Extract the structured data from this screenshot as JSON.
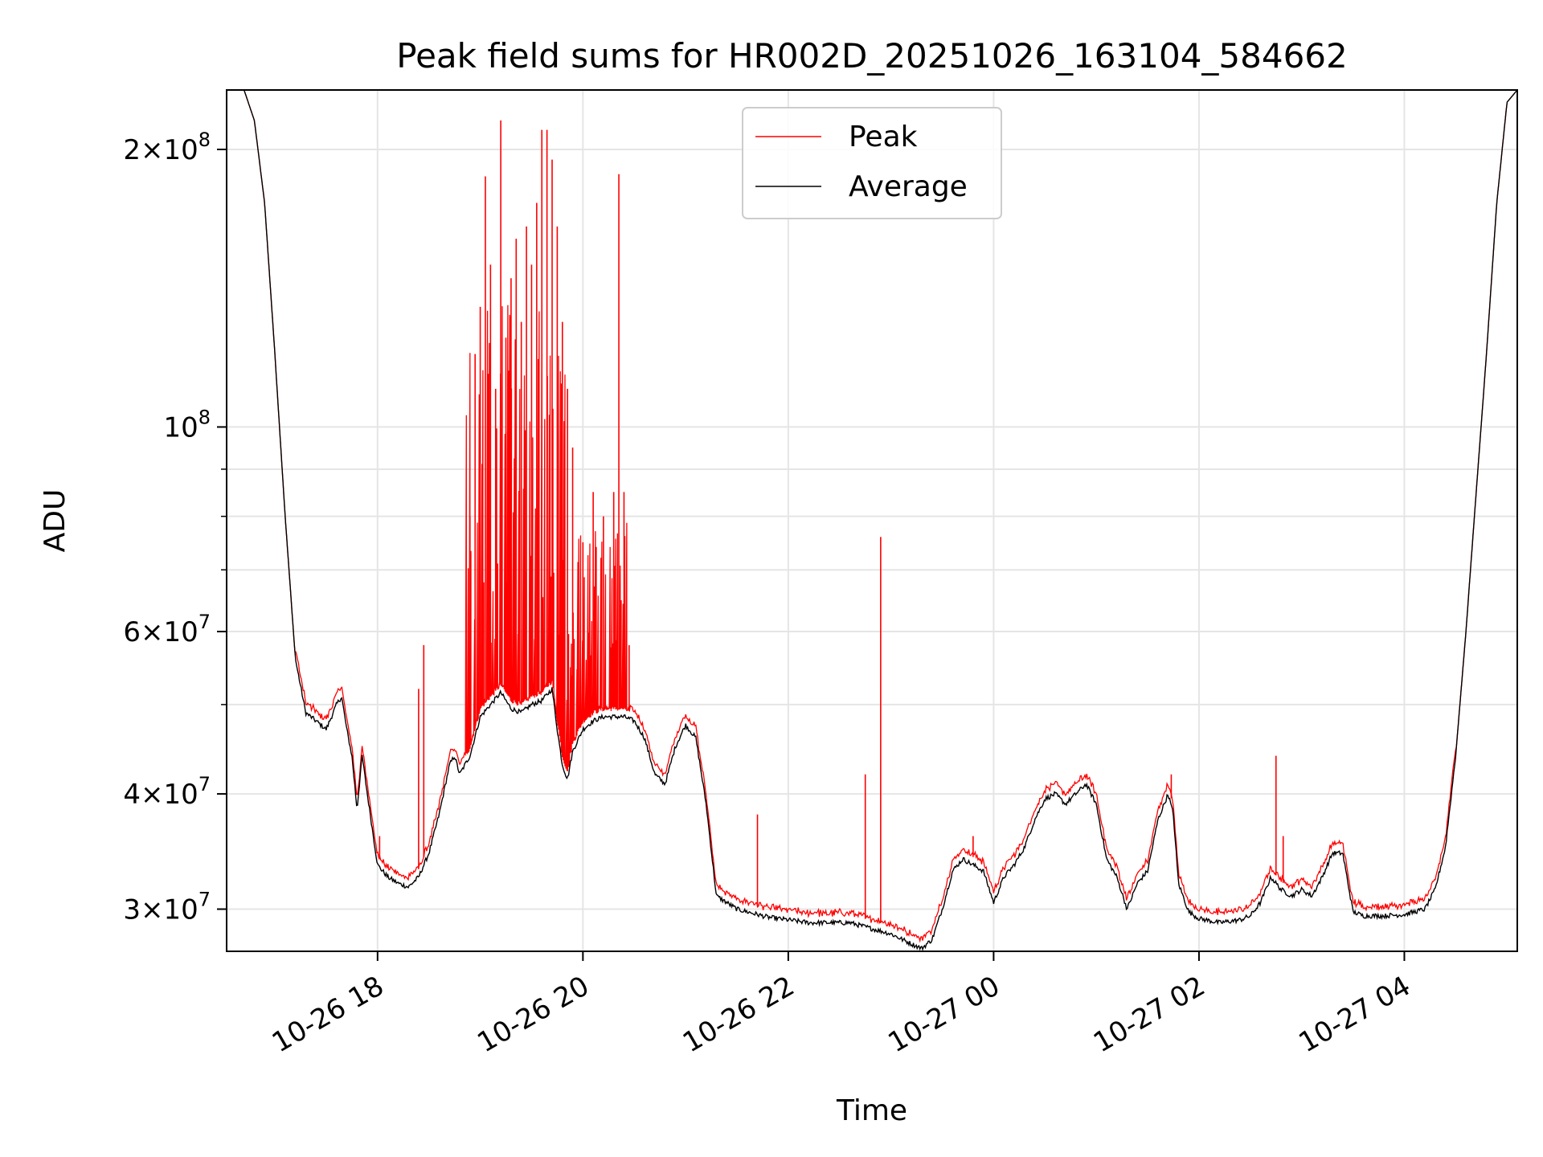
{
  "chart_data": {
    "type": "line",
    "title": "Peak field sums for HR002D_20251026_163104_584662",
    "xlabel": "Time",
    "ylabel": "ADU",
    "yscale": "log",
    "ylim": [
      27000000,
      232000000
    ],
    "xlim_hours": [
      16.53,
      29.1
    ],
    "grid": true,
    "legend_position": "upper-center",
    "x_ticks": [
      {
        "hour": 18,
        "label": "10-26 18"
      },
      {
        "hour": 20,
        "label": "10-26 20"
      },
      {
        "hour": 22,
        "label": "10-26 22"
      },
      {
        "hour": 24,
        "label": "10-27 00"
      },
      {
        "hour": 26,
        "label": "10-27 02"
      },
      {
        "hour": 28,
        "label": "10-27 04"
      }
    ],
    "y_ticks": [
      {
        "value": 30000000,
        "mant": "3",
        "exp": "7"
      },
      {
        "value": 40000000,
        "mant": "4",
        "exp": "7"
      },
      {
        "value": 60000000,
        "mant": "6",
        "exp": "7"
      },
      {
        "value": 100000000,
        "mant": "",
        "exp": "8"
      },
      {
        "value": 200000000,
        "mant": "2",
        "exp": "8"
      }
    ],
    "y_minor_ticks": [
      50000000,
      70000000,
      80000000,
      90000000
    ],
    "colors": {
      "peak": "#ff0000",
      "average": "#000000",
      "grid": "#e5e5e5"
    },
    "series": [
      {
        "name": "Peak",
        "color": "#ff0000",
        "baseline_offset": 1.02,
        "spikes": [
          [
            18.02,
            36000000
          ],
          [
            18.4,
            52000000
          ],
          [
            18.45,
            58000000
          ],
          [
            18.9,
            80000000
          ],
          [
            18.95,
            120000000
          ],
          [
            19.0,
            135000000
          ],
          [
            19.05,
            187000000
          ],
          [
            19.1,
            150000000
          ],
          [
            19.15,
            110000000
          ],
          [
            19.2,
            215000000
          ],
          [
            19.25,
            125000000
          ],
          [
            19.3,
            145000000
          ],
          [
            19.35,
            160000000
          ],
          [
            19.4,
            130000000
          ],
          [
            19.45,
            165000000
          ],
          [
            19.5,
            150000000
          ],
          [
            19.55,
            175000000
          ],
          [
            19.6,
            210000000
          ],
          [
            19.65,
            210000000
          ],
          [
            19.7,
            195000000
          ],
          [
            19.75,
            165000000
          ],
          [
            19.8,
            130000000
          ],
          [
            19.85,
            110000000
          ],
          [
            19.9,
            95000000
          ],
          [
            20.0,
            75000000
          ],
          [
            20.1,
            85000000
          ],
          [
            20.2,
            80000000
          ],
          [
            20.3,
            85000000
          ],
          [
            20.35,
            188000000
          ],
          [
            20.4,
            85000000
          ],
          [
            20.45,
            58000000
          ],
          [
            21.7,
            38000000
          ],
          [
            22.75,
            42000000
          ],
          [
            22.9,
            76000000
          ],
          [
            23.8,
            36000000
          ],
          [
            25.73,
            42000000
          ],
          [
            26.75,
            44000000
          ],
          [
            26.82,
            36000000
          ]
        ]
      },
      {
        "name": "Average",
        "color": "#000000",
        "points": [
          [
            16.53,
            232000000
          ],
          [
            16.7,
            232000000
          ],
          [
            16.8,
            215000000
          ],
          [
            16.9,
            175000000
          ],
          [
            17.0,
            120000000
          ],
          [
            17.1,
            80000000
          ],
          [
            17.2,
            56000000
          ],
          [
            17.3,
            49000000
          ],
          [
            17.4,
            48000000
          ],
          [
            17.5,
            47000000
          ],
          [
            17.6,
            50000000
          ],
          [
            17.65,
            51000000
          ],
          [
            17.7,
            47000000
          ],
          [
            17.75,
            44000000
          ],
          [
            17.8,
            38500000
          ],
          [
            17.85,
            44000000
          ],
          [
            17.9,
            40000000
          ],
          [
            18.0,
            33500000
          ],
          [
            18.1,
            32500000
          ],
          [
            18.2,
            32000000
          ],
          [
            18.3,
            31700000
          ],
          [
            18.4,
            32500000
          ],
          [
            18.5,
            34500000
          ],
          [
            18.6,
            38000000
          ],
          [
            18.7,
            43000000
          ],
          [
            18.75,
            44000000
          ],
          [
            18.8,
            42000000
          ],
          [
            18.85,
            43000000
          ],
          [
            18.9,
            44000000
          ],
          [
            19.0,
            48500000
          ],
          [
            19.1,
            50000000
          ],
          [
            19.2,
            51500000
          ],
          [
            19.3,
            49500000
          ],
          [
            19.4,
            49000000
          ],
          [
            19.5,
            50000000
          ],
          [
            19.6,
            50500000
          ],
          [
            19.7,
            52000000
          ],
          [
            19.75,
            47000000
          ],
          [
            19.8,
            43000000
          ],
          [
            19.85,
            41500000
          ],
          [
            19.9,
            44500000
          ],
          [
            20.0,
            47000000
          ],
          [
            20.1,
            48000000
          ],
          [
            20.2,
            48500000
          ],
          [
            20.3,
            48500000
          ],
          [
            20.4,
            48500000
          ],
          [
            20.5,
            48000000
          ],
          [
            20.6,
            46000000
          ],
          [
            20.7,
            42000000
          ],
          [
            20.8,
            41000000
          ],
          [
            20.9,
            45000000
          ],
          [
            21.0,
            47500000
          ],
          [
            21.1,
            46000000
          ],
          [
            21.2,
            39000000
          ],
          [
            21.3,
            31000000
          ],
          [
            21.4,
            30500000
          ],
          [
            21.5,
            30000000
          ],
          [
            21.6,
            29800000
          ],
          [
            21.8,
            29400000
          ],
          [
            22.0,
            29200000
          ],
          [
            22.2,
            29000000
          ],
          [
            22.4,
            29000000
          ],
          [
            22.6,
            29000000
          ],
          [
            22.8,
            28600000
          ],
          [
            23.0,
            28200000
          ],
          [
            23.2,
            27500000
          ],
          [
            23.3,
            27200000
          ],
          [
            23.4,
            27800000
          ],
          [
            23.5,
            30000000
          ],
          [
            23.6,
            33000000
          ],
          [
            23.7,
            34000000
          ],
          [
            23.8,
            33500000
          ],
          [
            23.9,
            33000000
          ],
          [
            24.0,
            30500000
          ],
          [
            24.1,
            32500000
          ],
          [
            24.2,
            33500000
          ],
          [
            24.3,
            35000000
          ],
          [
            24.4,
            37500000
          ],
          [
            24.5,
            39500000
          ],
          [
            24.6,
            40000000
          ],
          [
            24.7,
            39000000
          ],
          [
            24.8,
            40000000
          ],
          [
            24.9,
            41000000
          ],
          [
            25.0,
            39000000
          ],
          [
            25.1,
            34000000
          ],
          [
            25.2,
            32500000
          ],
          [
            25.3,
            30000000
          ],
          [
            25.4,
            32000000
          ],
          [
            25.5,
            33000000
          ],
          [
            25.6,
            37500000
          ],
          [
            25.7,
            40000000
          ],
          [
            25.75,
            38000000
          ],
          [
            25.8,
            32000000
          ],
          [
            25.9,
            29800000
          ],
          [
            26.0,
            29300000
          ],
          [
            26.2,
            29000000
          ],
          [
            26.4,
            29200000
          ],
          [
            26.5,
            29500000
          ],
          [
            26.6,
            30500000
          ],
          [
            26.7,
            32500000
          ],
          [
            26.8,
            31500000
          ],
          [
            26.9,
            31000000
          ],
          [
            27.0,
            31500000
          ],
          [
            27.1,
            31000000
          ],
          [
            27.2,
            32500000
          ],
          [
            27.3,
            34500000
          ],
          [
            27.4,
            34500000
          ],
          [
            27.5,
            29800000
          ],
          [
            27.6,
            29500000
          ],
          [
            27.8,
            29500000
          ],
          [
            28.0,
            29600000
          ],
          [
            28.2,
            30000000
          ],
          [
            28.3,
            31500000
          ],
          [
            28.4,
            35000000
          ],
          [
            28.5,
            44000000
          ],
          [
            28.6,
            60000000
          ],
          [
            28.7,
            85000000
          ],
          [
            28.8,
            120000000
          ],
          [
            28.9,
            175000000
          ],
          [
            29.0,
            225000000
          ],
          [
            29.1,
            232000000
          ]
        ]
      }
    ]
  }
}
